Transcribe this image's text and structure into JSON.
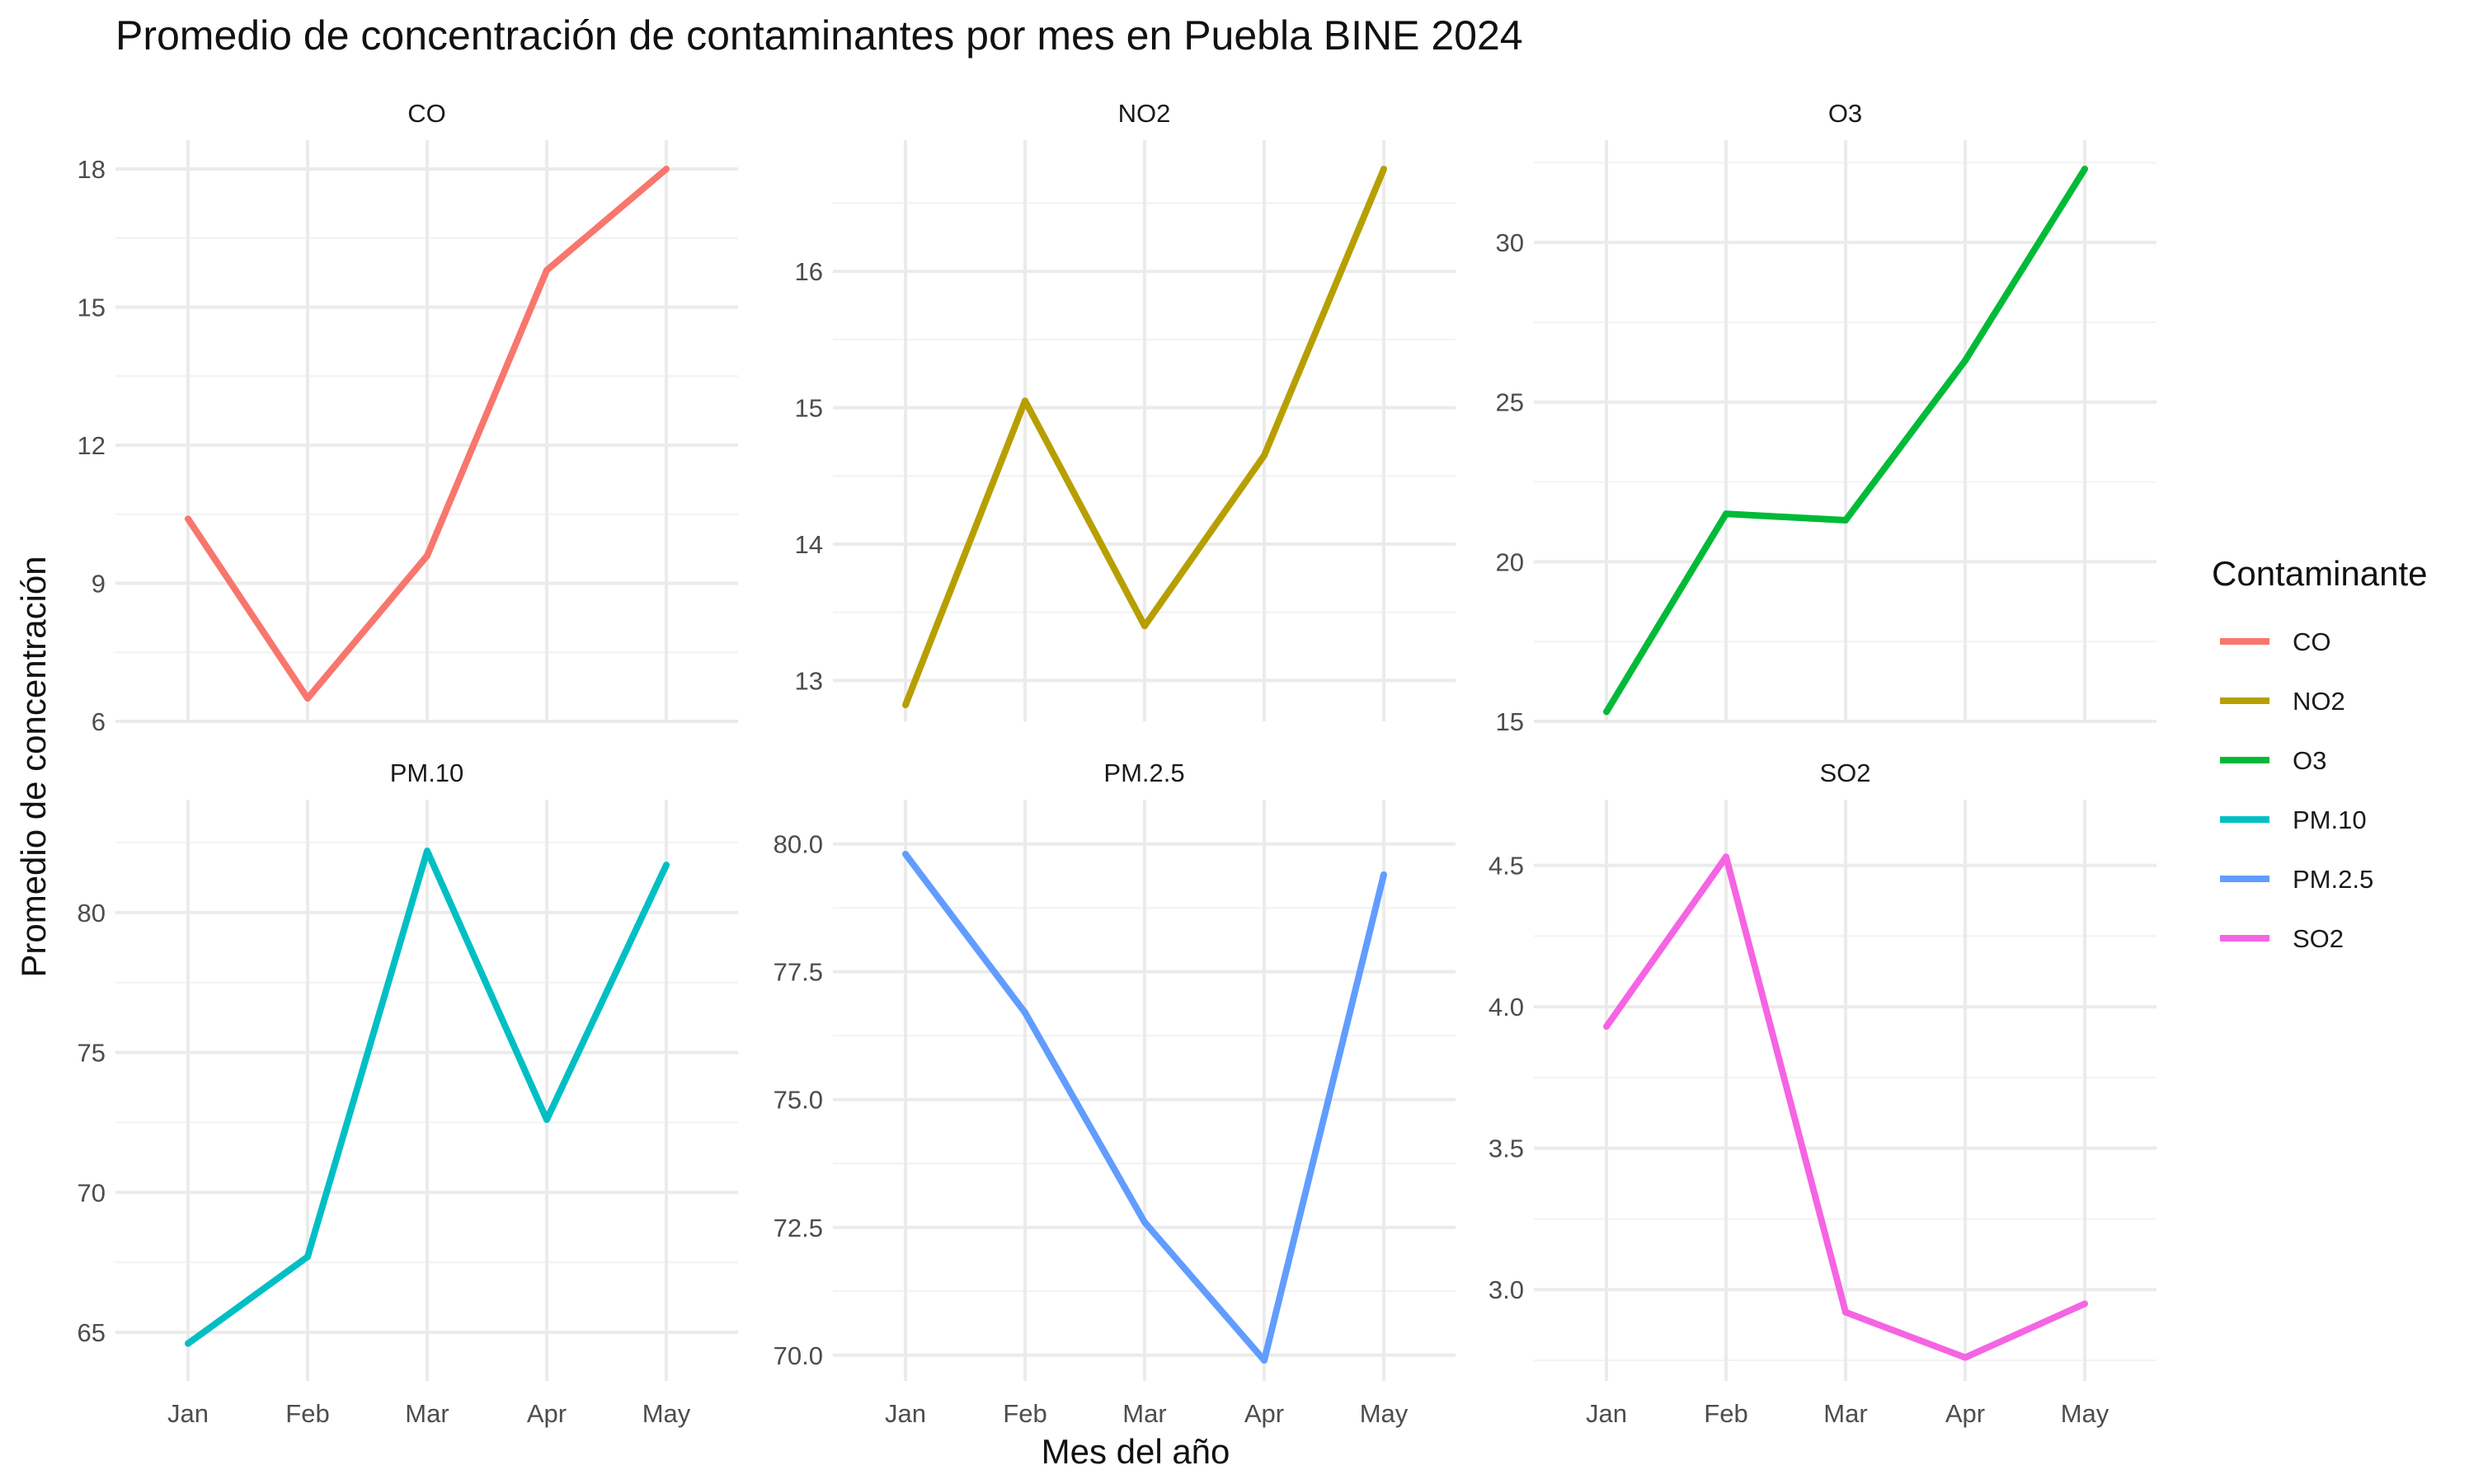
{
  "chart_data": {
    "type": "line",
    "title": "Promedio de concentración de contaminantes por mes en Puebla BINE 2024",
    "xlabel": "Mes del año",
    "ylabel": "Promedio de concentración",
    "categories": [
      "Jan",
      "Feb",
      "Mar",
      "Apr",
      "May"
    ],
    "legend": {
      "title": "Contaminante",
      "position": "right",
      "items": [
        {
          "label": "CO",
          "color": "#F8766D"
        },
        {
          "label": "NO2",
          "color": "#B79F00"
        },
        {
          "label": "O3",
          "color": "#00BA38"
        },
        {
          "label": "PM.10",
          "color": "#00BFC4"
        },
        {
          "label": "PM.2.5",
          "color": "#619CFF"
        },
        {
          "label": "SO2",
          "color": "#F564E3"
        }
      ]
    },
    "grid": true,
    "facets": [
      {
        "name": "CO",
        "color": "#F8766D",
        "values": [
          10.4,
          6.5,
          9.6,
          15.8,
          18.0
        ],
        "ylim": [
          6,
          18
        ],
        "yticks": [
          "6",
          "9",
          "12",
          "15",
          "18"
        ],
        "yminor": [
          7.5,
          10.5,
          13.5,
          16.5
        ]
      },
      {
        "name": "NO2",
        "color": "#B79F00",
        "values": [
          12.82,
          15.05,
          13.4,
          14.65,
          16.75
        ],
        "ylim": [
          12.7,
          16.75
        ],
        "yticks": [
          "13",
          "14",
          "15",
          "16"
        ],
        "yminor": [
          12.5,
          13.5,
          14.5,
          15.5,
          16.5
        ]
      },
      {
        "name": "O3",
        "color": "#00BA38",
        "values": [
          15.3,
          21.5,
          21.3,
          26.3,
          32.3
        ],
        "ylim": [
          15,
          32.3
        ],
        "yticks": [
          "15",
          "20",
          "25",
          "30"
        ],
        "yminor": [
          17.5,
          22.5,
          27.5,
          32.5
        ]
      },
      {
        "name": "PM.10",
        "color": "#00BFC4",
        "values": [
          64.6,
          67.7,
          82.2,
          72.6,
          81.7
        ],
        "ylim": [
          64,
          83
        ],
        "yticks": [
          "65",
          "70",
          "75",
          "80"
        ],
        "yminor": [
          67.5,
          72.5,
          77.5,
          82.5
        ]
      },
      {
        "name": "PM.2.5",
        "color": "#619CFF",
        "values": [
          79.8,
          76.7,
          72.6,
          69.9,
          79.4
        ],
        "ylim": [
          69.9,
          80.3
        ],
        "yticks": [
          "70.0",
          "72.5",
          "75.0",
          "77.5",
          "80.0"
        ],
        "yminor": [
          71.25,
          73.75,
          76.25,
          78.75
        ]
      },
      {
        "name": "SO2",
        "color": "#F564E3",
        "values": [
          3.93,
          4.53,
          2.92,
          2.76,
          2.95
        ],
        "ylim": [
          2.75,
          4.63
        ],
        "yticks": [
          "3.0",
          "3.5",
          "4.0",
          "4.5"
        ],
        "yminor": [
          2.75,
          3.25,
          3.75,
          4.25
        ]
      }
    ]
  }
}
